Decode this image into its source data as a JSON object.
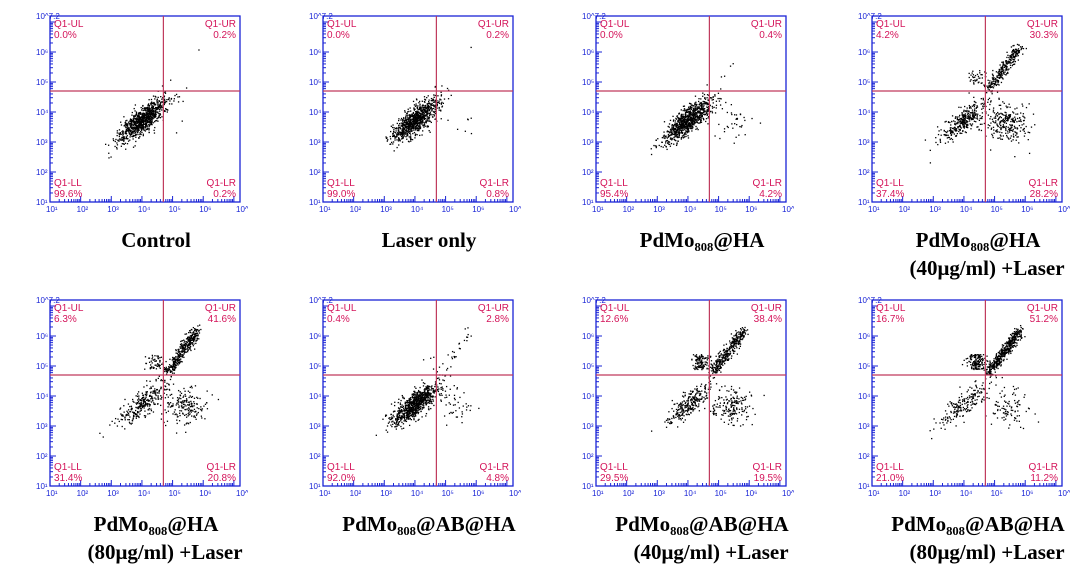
{
  "figure": {
    "x_ticks": [
      "10¹",
      "10²",
      "10³",
      "10⁴",
      "10⁵",
      "10⁶",
      "10^7.2"
    ],
    "y_ticks": [
      "10¹",
      "10²",
      "10³",
      "10⁴",
      "10⁵",
      "10⁶",
      "10^7.2"
    ],
    "colors": {
      "axis": "#1a24d6",
      "gate": "#c0395c",
      "quadrant_text": "#d4145a",
      "dots": "#000000"
    }
  },
  "chart_data": [
    {
      "type": "scatter",
      "panel": "1",
      "caption": "Control",
      "caption_sub": "",
      "x_scale": "log",
      "y_scale": "log",
      "xlim": [
        1,
        7.2
      ],
      "ylim": [
        1,
        7.2
      ],
      "gate": [
        4.7,
        4.7
      ],
      "quadrants": {
        "ul": {
          "label": "Q1-UL",
          "value": "0.0%"
        },
        "ur": {
          "label": "Q1-UR",
          "value": "0.2%"
        },
        "ll": {
          "label": "Q1-LL",
          "value": "99.6%"
        },
        "lr": {
          "label": "Q1-LR",
          "value": "0.2%"
        }
      }
    },
    {
      "type": "scatter",
      "panel": "2",
      "caption": "Laser only",
      "caption_sub": "",
      "x_scale": "log",
      "y_scale": "log",
      "xlim": [
        1,
        7.2
      ],
      "ylim": [
        1,
        7.2
      ],
      "gate": [
        4.7,
        4.7
      ],
      "quadrants": {
        "ul": {
          "label": "Q1-UL",
          "value": "0.0%"
        },
        "ur": {
          "label": "Q1-UR",
          "value": "0.2%"
        },
        "ll": {
          "label": "Q1-LL",
          "value": "99.0%"
        },
        "lr": {
          "label": "Q1-LR",
          "value": "0.8%"
        }
      }
    },
    {
      "type": "scatter",
      "panel": "3",
      "caption": "PdMo₈₀₈@HA",
      "caption_sub": "",
      "x_scale": "log",
      "y_scale": "log",
      "xlim": [
        1,
        7.2
      ],
      "ylim": [
        1,
        7.2
      ],
      "gate": [
        4.7,
        4.7
      ],
      "quadrants": {
        "ul": {
          "label": "Q1-UL",
          "value": "0.0%"
        },
        "ur": {
          "label": "Q1-UR",
          "value": "0.4%"
        },
        "ll": {
          "label": "Q1-LL",
          "value": "95.4%"
        },
        "lr": {
          "label": "Q1-LR",
          "value": "4.2%"
        }
      }
    },
    {
      "type": "scatter",
      "panel": "4",
      "caption": "PdMo₈₀₈@HA",
      "caption_sub": "(40μg/ml) +Laser",
      "x_scale": "log",
      "y_scale": "log",
      "xlim": [
        1,
        7.2
      ],
      "ylim": [
        1,
        7.2
      ],
      "gate": [
        4.7,
        4.7
      ],
      "quadrants": {
        "ul": {
          "label": "Q1-UL",
          "value": "4.2%"
        },
        "ur": {
          "label": "Q1-UR",
          "value": "30.3%"
        },
        "ll": {
          "label": "Q1-LL",
          "value": "37.4%"
        },
        "lr": {
          "label": "Q1-LR",
          "value": "28.2%"
        }
      }
    },
    {
      "type": "scatter",
      "panel": "5",
      "caption": "PdMo₈₀₈@HA",
      "caption_sub": "(80μg/ml) +Laser",
      "x_scale": "log",
      "y_scale": "log",
      "xlim": [
        1,
        7.2
      ],
      "ylim": [
        1,
        7.2
      ],
      "gate": [
        4.7,
        4.7
      ],
      "quadrants": {
        "ul": {
          "label": "Q1-UL",
          "value": "6.3%"
        },
        "ur": {
          "label": "Q1-UR",
          "value": "41.6%"
        },
        "ll": {
          "label": "Q1-LL",
          "value": "31.4%"
        },
        "lr": {
          "label": "Q1-LR",
          "value": "20.8%"
        }
      }
    },
    {
      "type": "scatter",
      "panel": "6",
      "caption": "PdMo₈₀₈@AB@HA",
      "caption_sub": "",
      "x_scale": "log",
      "y_scale": "log",
      "xlim": [
        1,
        7.2
      ],
      "ylim": [
        1,
        7.2
      ],
      "gate": [
        4.7,
        4.7
      ],
      "quadrants": {
        "ul": {
          "label": "Q1-UL",
          "value": "0.4%"
        },
        "ur": {
          "label": "Q1-UR",
          "value": "2.8%"
        },
        "ll": {
          "label": "Q1-LL",
          "value": "92.0%"
        },
        "lr": {
          "label": "Q1-LR",
          "value": "4.8%"
        }
      }
    },
    {
      "type": "scatter",
      "panel": "7",
      "caption": "PdMo₈₀₈@AB@HA",
      "caption_sub": "(40μg/ml) +Laser",
      "x_scale": "log",
      "y_scale": "log",
      "xlim": [
        1,
        7.2
      ],
      "ylim": [
        1,
        7.2
      ],
      "gate": [
        4.7,
        4.7
      ],
      "quadrants": {
        "ul": {
          "label": "Q1-UL",
          "value": "12.6%"
        },
        "ur": {
          "label": "Q1-UR",
          "value": "38.4%"
        },
        "ll": {
          "label": "Q1-LL",
          "value": "29.5%"
        },
        "lr": {
          "label": "Q1-LR",
          "value": "19.5%"
        }
      }
    },
    {
      "type": "scatter",
      "panel": "8",
      "caption": "PdMo₈₀₈@AB@HA",
      "caption_sub": "(80μg/ml) +Laser",
      "x_scale": "log",
      "y_scale": "log",
      "xlim": [
        1,
        7.2
      ],
      "ylim": [
        1,
        7.2
      ],
      "gate": [
        4.7,
        4.7
      ],
      "quadrants": {
        "ul": {
          "label": "Q1-UL",
          "value": "16.7%"
        },
        "ur": {
          "label": "Q1-UR",
          "value": "51.2%"
        },
        "ll": {
          "label": "Q1-LL",
          "value": "21.0%"
        },
        "lr": {
          "label": "Q1-LR",
          "value": "11.2%"
        }
      }
    }
  ]
}
